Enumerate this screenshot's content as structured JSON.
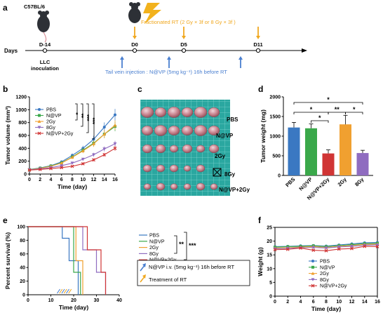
{
  "colors": {
    "PBS": "#3a78c2",
    "N@VP": "#3aa84a",
    "2Gy": "#f0a030",
    "8Gy": "#8f6cc0",
    "N@VP+2Gy": "#d03535",
    "arrow_blue": "#4a7fd0",
    "arrow_orange": "#f0a820"
  },
  "icons": [
    "mouse-icon",
    "lightning-icon",
    "tumor-grid-photo"
  ],
  "panels": {
    "a": {
      "label": "a",
      "strain": "C57BL/6",
      "days_label": "Days",
      "timepoints": [
        "D-14",
        "D0",
        "D5",
        "D11"
      ],
      "inoculation": "LLC\ninoculation",
      "rt_text": "Fractionated RT (2 Gy × 3f or 8 Gy × 3f )",
      "injection_text": "Tail vein injection : N@VP (5mg kg⁻¹) 16h before RT"
    },
    "b": {
      "label": "b"
    },
    "c": {
      "label": "c",
      "row_labels": [
        "PBS",
        "N@VP",
        "2Gy",
        "8Gy",
        "N@VP+2Gy"
      ]
    },
    "d": {
      "label": "d"
    },
    "e": {
      "label": "e",
      "note_blue": "N@VP i.v. (5mg kg⁻¹) 16h before RT",
      "note_orange": "Treatment of RT"
    },
    "f": {
      "label": "f"
    }
  },
  "chart_data": [
    {
      "id": "b",
      "type": "line",
      "xlabel": "Time (day)",
      "ylabel": "Tumor volume (mm³)",
      "xlim": [
        0,
        16
      ],
      "ylim": [
        0,
        1200
      ],
      "xticks": [
        0,
        2,
        4,
        6,
        8,
        10,
        12,
        14,
        16
      ],
      "yticks": [
        0,
        200,
        400,
        600,
        800,
        1000,
        1200
      ],
      "x": [
        0,
        2,
        4,
        6,
        8,
        10,
        12,
        14,
        16
      ],
      "series": [
        {
          "name": "PBS",
          "values": [
            70,
            95,
            130,
            190,
            290,
            400,
            540,
            730,
            920
          ]
        },
        {
          "name": "N@VP",
          "values": [
            68,
            92,
            125,
            175,
            265,
            370,
            480,
            620,
            740
          ]
        },
        {
          "name": "2Gy",
          "values": [
            65,
            88,
            120,
            170,
            260,
            360,
            470,
            620,
            760
          ]
        },
        {
          "name": "8Gy",
          "values": [
            65,
            80,
            100,
            130,
            170,
            230,
            300,
            390,
            470
          ]
        },
        {
          "name": "N@VP+2Gy",
          "values": [
            62,
            72,
            85,
            100,
            120,
            160,
            220,
            300,
            400
          ]
        }
      ],
      "significance": [
        "*",
        "**",
        "***",
        "***"
      ],
      "legend": "top-left"
    },
    {
      "id": "d",
      "type": "bar",
      "categories": [
        "PBS",
        "N@VP",
        "N@VP+2Gy",
        "2Gy",
        "8Gy"
      ],
      "values": [
        1220,
        1200,
        560,
        1300,
        570
      ],
      "errors": [
        130,
        110,
        90,
        230,
        70
      ],
      "ylabel": "Tumor weight (mg)",
      "ylim": [
        0,
        2000
      ],
      "yticks": [
        0,
        500,
        1000,
        1500,
        2000
      ],
      "significance": [
        "*",
        "*",
        "**",
        "*",
        "*"
      ]
    },
    {
      "id": "e",
      "type": "line",
      "xlabel": "Time (day)",
      "ylabel": "Percent survival (%)",
      "xlim": [
        0,
        40
      ],
      "ylim": [
        0,
        100
      ],
      "xticks": [
        0,
        10,
        20,
        30,
        40
      ],
      "yticks": [
        0,
        20,
        40,
        60,
        80,
        100
      ],
      "series": [
        {
          "name": "PBS",
          "values": [
            [
              0,
              100
            ],
            [
              15,
              100
            ],
            [
              15,
              83
            ],
            [
              18,
              83
            ],
            [
              18,
              50
            ],
            [
              22,
              50
            ],
            [
              22,
              0
            ]
          ]
        },
        {
          "name": "N@VP",
          "values": [
            [
              0,
              100
            ],
            [
              20,
              100
            ],
            [
              20,
              33
            ],
            [
              23,
              33
            ],
            [
              23,
              0
            ]
          ]
        },
        {
          "name": "2Gy",
          "values": [
            [
              0,
              100
            ],
            [
              21,
              100
            ],
            [
              21,
              50
            ],
            [
              24,
              50
            ],
            [
              24,
              0
            ]
          ]
        },
        {
          "name": "8Gy",
          "values": [
            [
              0,
              100
            ],
            [
              24,
              100
            ],
            [
              24,
              66
            ],
            [
              30,
              66
            ],
            [
              30,
              33
            ],
            [
              34,
              33
            ],
            [
              34,
              0
            ]
          ]
        },
        {
          "name": "N@VP+2Gy",
          "values": [
            [
              0,
              100
            ],
            [
              26,
              100
            ],
            [
              26,
              66
            ],
            [
              32,
              66
            ],
            [
              32,
              33
            ],
            [
              34,
              33
            ],
            [
              34,
              0
            ]
          ]
        }
      ],
      "significance": [
        "**",
        "***"
      ],
      "legend": "right"
    },
    {
      "id": "f",
      "type": "line",
      "xlabel": "Time (day)",
      "ylabel": "Weight (g)",
      "xlim": [
        0,
        16
      ],
      "ylim": [
        0,
        25
      ],
      "xticks": [
        0,
        2,
        4,
        6,
        8,
        10,
        12,
        14,
        16
      ],
      "yticks": [
        0,
        5,
        10,
        15,
        20,
        25
      ],
      "x": [
        0,
        2,
        4,
        6,
        8,
        10,
        12,
        14,
        16
      ],
      "series": [
        {
          "name": "PBS",
          "values": [
            18,
            18.1,
            18.3,
            18.4,
            18.2,
            18.6,
            19,
            19.4,
            19.5
          ]
        },
        {
          "name": "N@VP",
          "values": [
            17.8,
            18,
            18.1,
            18.3,
            18,
            18.4,
            18.7,
            19.1,
            19.2
          ]
        },
        {
          "name": "2Gy",
          "values": [
            17.5,
            17.6,
            17.8,
            18,
            17.7,
            18.1,
            18.4,
            18.8,
            18.9
          ]
        },
        {
          "name": "8Gy",
          "values": [
            17.2,
            17.4,
            17.6,
            17.7,
            17.5,
            17.9,
            18.1,
            18.5,
            18.6
          ]
        },
        {
          "name": "N@VP+2Gy",
          "values": [
            16.9,
            17,
            17.5,
            16.7,
            16.5,
            17.1,
            17.3,
            18.1,
            18
          ]
        }
      ],
      "legend": "center"
    }
  ]
}
